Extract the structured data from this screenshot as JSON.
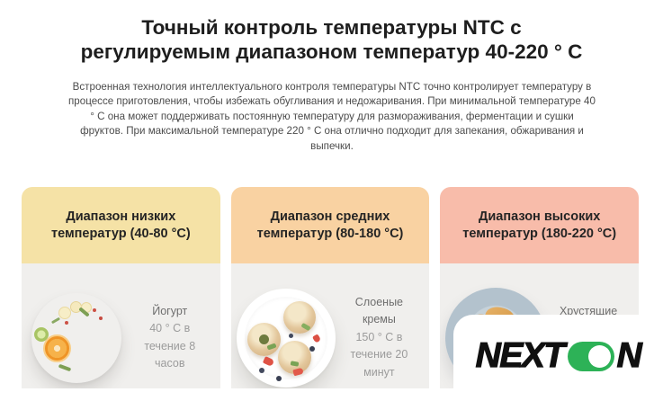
{
  "page": {
    "title_line1": "Точный контроль температуры NTC с",
    "title_line2": "регулируемым диапазоном температур 40-220 ° C",
    "description": "Встроенная технология интеллектуального контроля температуры NTC точно контролирует температуру в процессе приготовления, чтобы избежать обугливания и недожаривания. При минимальной температуре 40 ° С она может поддерживать постоянную температуру для размораживания, ферментации и сушки фруктов. При максимальной температуре 220 ° С она отлично подходит для запекания, обжаривания и выпечки."
  },
  "cards": [
    {
      "header": "Диапазон низких температур (40-80 °C)",
      "header_color": "#f5e2a6",
      "food_name": "Йогурт",
      "food_detail_lines": [
        "40 ° C в",
        "течение 8 часов"
      ],
      "image": "yogurt-bowl"
    },
    {
      "header": "Диапазон средних температур (80-180 °C)",
      "header_color": "#f9d2a2",
      "food_name": "Слоеные кремы",
      "food_detail_lines": [
        "150 ° C в",
        "течение 20",
        "минут"
      ],
      "image": "cream-puffs-plate"
    },
    {
      "header": "Диапазон высоких температур (180-220 °C)",
      "header_color": "#f8bcaa",
      "food_name": "Хрустящие",
      "food_detail_lines": [],
      "image": "chicken-wings-plate"
    }
  ],
  "logo": {
    "text_before": "NEXT",
    "text_after": "N",
    "toggle_color": "#2db257"
  },
  "colors": {
    "card_body_bg": "#f0efed",
    "low_temp_header": "#f5e2a6",
    "mid_temp_header": "#f9d2a2",
    "high_temp_header": "#f8bcaa",
    "logo_green": "#2db257"
  }
}
